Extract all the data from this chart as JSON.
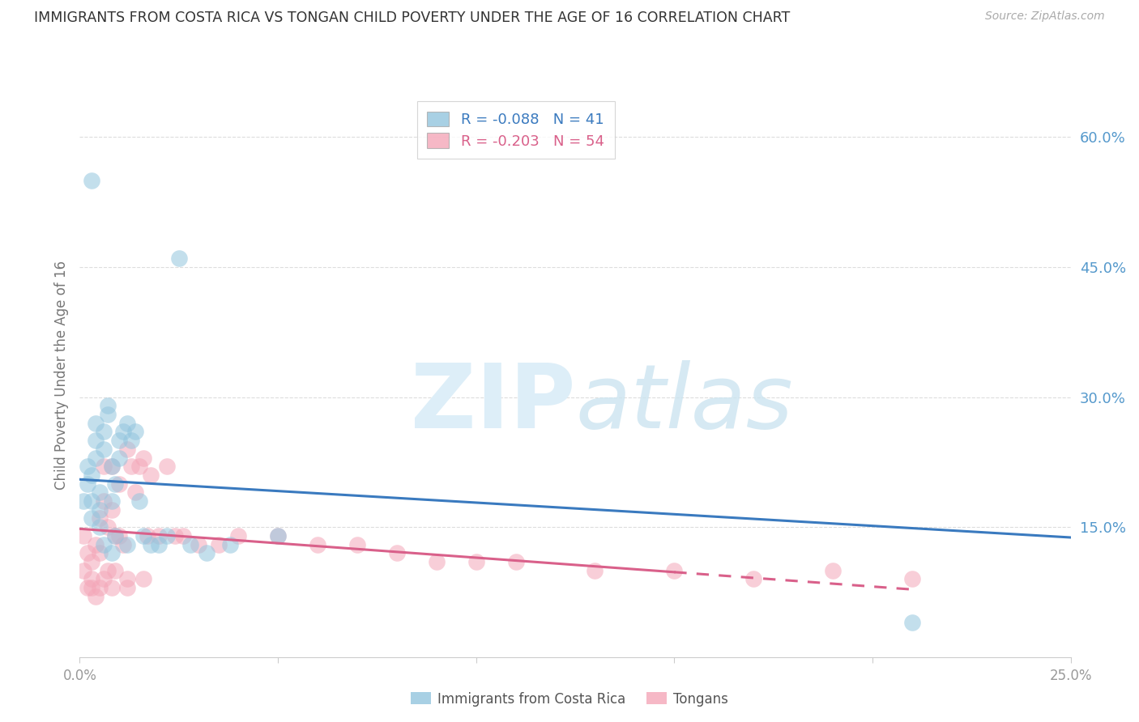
{
  "title": "IMMIGRANTS FROM COSTA RICA VS TONGAN CHILD POVERTY UNDER THE AGE OF 16 CORRELATION CHART",
  "source": "Source: ZipAtlas.com",
  "ylabel": "Child Poverty Under the Age of 16",
  "xlim": [
    0,
    0.25
  ],
  "ylim": [
    0,
    0.65
  ],
  "yticks": [
    0.15,
    0.3,
    0.45,
    0.6
  ],
  "ytick_labels": [
    "15.0%",
    "30.0%",
    "45.0%",
    "60.0%"
  ],
  "xticks": [
    0.0,
    0.05,
    0.1,
    0.15,
    0.2,
    0.25
  ],
  "xtick_labels": [
    "0.0%",
    "",
    "",
    "",
    "",
    "25.0%"
  ],
  "blue_label": "Immigrants from Costa Rica",
  "pink_label": "Tongans",
  "blue_R": -0.088,
  "blue_N": 41,
  "pink_R": -0.203,
  "pink_N": 54,
  "blue_color": "#92c5de",
  "pink_color": "#f4a6b8",
  "blue_line_color": "#3a7abf",
  "pink_line_color": "#d9608a",
  "title_color": "#333333",
  "right_tick_color": "#5599cc",
  "blue_scatter_x": [
    0.001,
    0.002,
    0.002,
    0.003,
    0.003,
    0.003,
    0.004,
    0.004,
    0.004,
    0.005,
    0.005,
    0.005,
    0.006,
    0.006,
    0.007,
    0.007,
    0.008,
    0.008,
    0.009,
    0.009,
    0.01,
    0.01,
    0.011,
    0.012,
    0.013,
    0.014,
    0.015,
    0.016,
    0.018,
    0.02,
    0.022,
    0.025,
    0.028,
    0.032,
    0.038,
    0.05,
    0.012,
    0.008,
    0.006,
    0.21,
    0.003
  ],
  "blue_scatter_y": [
    0.18,
    0.2,
    0.22,
    0.16,
    0.18,
    0.21,
    0.25,
    0.27,
    0.23,
    0.15,
    0.17,
    0.19,
    0.24,
    0.26,
    0.28,
    0.29,
    0.22,
    0.18,
    0.2,
    0.14,
    0.25,
    0.23,
    0.26,
    0.27,
    0.25,
    0.26,
    0.18,
    0.14,
    0.13,
    0.13,
    0.14,
    0.46,
    0.13,
    0.12,
    0.13,
    0.14,
    0.13,
    0.12,
    0.13,
    0.04,
    0.55
  ],
  "pink_scatter_x": [
    0.001,
    0.001,
    0.002,
    0.002,
    0.003,
    0.003,
    0.003,
    0.004,
    0.004,
    0.005,
    0.005,
    0.005,
    0.006,
    0.006,
    0.006,
    0.007,
    0.007,
    0.008,
    0.008,
    0.009,
    0.009,
    0.01,
    0.01,
    0.011,
    0.012,
    0.012,
    0.013,
    0.014,
    0.015,
    0.016,
    0.017,
    0.018,
    0.02,
    0.022,
    0.024,
    0.026,
    0.03,
    0.035,
    0.04,
    0.05,
    0.06,
    0.07,
    0.08,
    0.09,
    0.1,
    0.11,
    0.13,
    0.15,
    0.17,
    0.19,
    0.008,
    0.012,
    0.016,
    0.21
  ],
  "pink_scatter_y": [
    0.14,
    0.1,
    0.12,
    0.08,
    0.09,
    0.11,
    0.08,
    0.13,
    0.07,
    0.16,
    0.12,
    0.08,
    0.22,
    0.18,
    0.09,
    0.15,
    0.1,
    0.22,
    0.17,
    0.14,
    0.1,
    0.2,
    0.14,
    0.13,
    0.24,
    0.08,
    0.22,
    0.19,
    0.22,
    0.23,
    0.14,
    0.21,
    0.14,
    0.22,
    0.14,
    0.14,
    0.13,
    0.13,
    0.14,
    0.14,
    0.13,
    0.13,
    0.12,
    0.11,
    0.11,
    0.11,
    0.1,
    0.1,
    0.09,
    0.1,
    0.08,
    0.09,
    0.09,
    0.09
  ],
  "blue_trend_x": [
    0.0,
    0.25
  ],
  "blue_trend_y": [
    0.205,
    0.138
  ],
  "pink_trend_x": [
    0.0,
    0.21
  ],
  "pink_trend_y": [
    0.148,
    0.078
  ]
}
